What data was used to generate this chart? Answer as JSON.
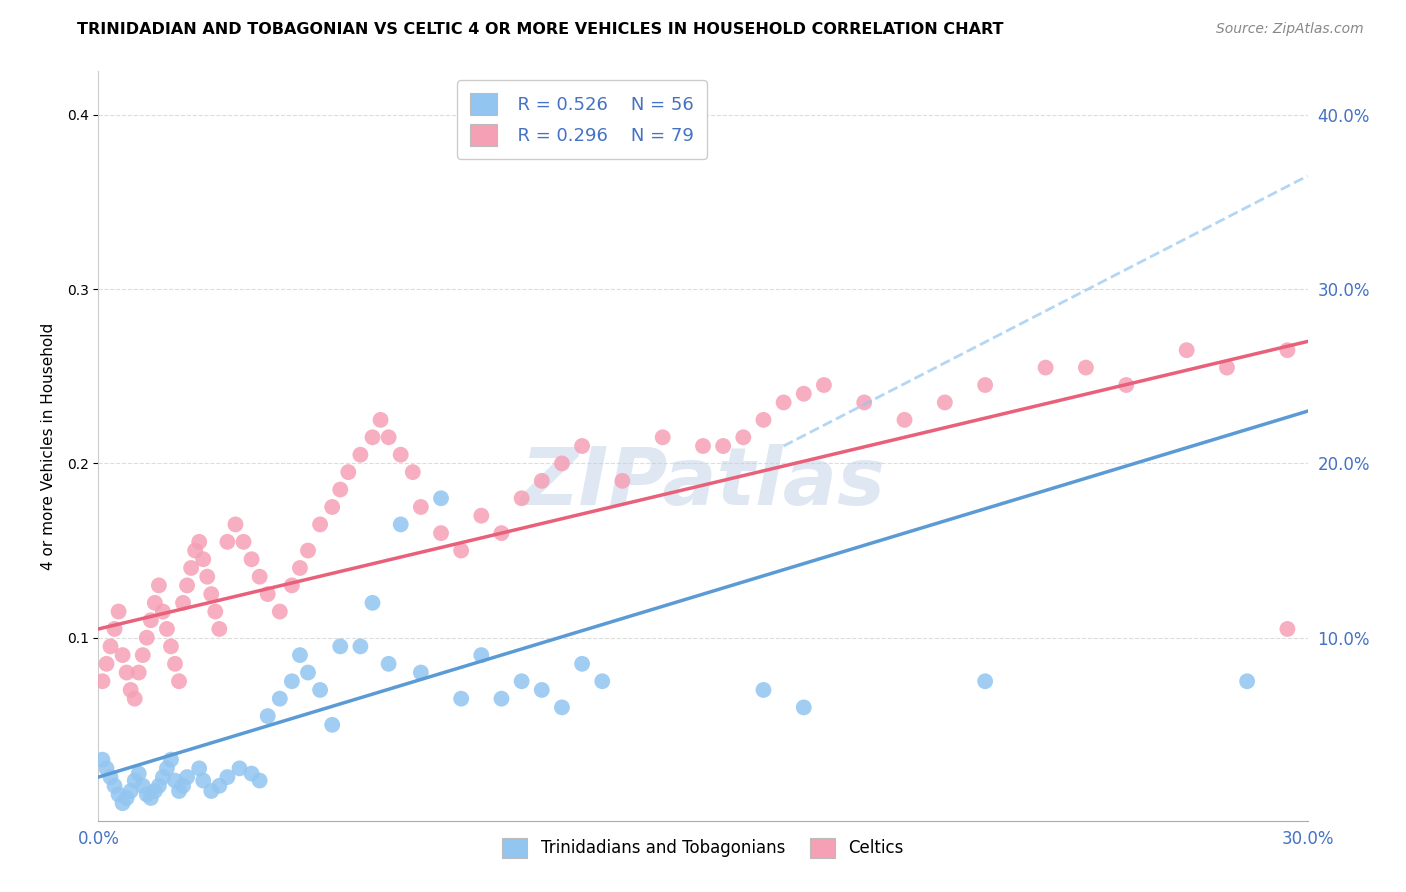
{
  "title": "TRINIDADIAN AND TOBAGONIAN VS CELTIC 4 OR MORE VEHICLES IN HOUSEHOLD CORRELATION CHART",
  "source": "Source: ZipAtlas.com",
  "ylabel": "4 or more Vehicles in Household",
  "xlim": [
    0.0,
    0.3
  ],
  "ylim": [
    -0.005,
    0.425
  ],
  "y_ticks": [
    0.1,
    0.2,
    0.3,
    0.4
  ],
  "x_ticks": [
    0.0,
    0.05,
    0.1,
    0.15,
    0.2,
    0.25,
    0.3
  ],
  "x_tick_labels": [
    "0.0%",
    "",
    "",
    "",
    "",
    "",
    "30.0%"
  ],
  "legend_blue_R": "R = 0.526",
  "legend_blue_N": "N = 56",
  "legend_pink_R": "R = 0.296",
  "legend_pink_N": "N = 79",
  "blue_color": "#92C5F0",
  "pink_color": "#F5A0B5",
  "blue_line_color": "#5B9BD5",
  "pink_line_color": "#E8607A",
  "blue_dash_color": "#92C5F0",
  "legend_text_color": "#4472C4",
  "watermark": "ZIPatlas",
  "blue_line": [
    0.0,
    0.02,
    0.3,
    0.23
  ],
  "pink_line": [
    0.0,
    0.105,
    0.3,
    0.27
  ],
  "blue_dash": [
    0.17,
    0.21,
    0.3,
    0.365
  ],
  "blue_points_x": [
    0.001,
    0.002,
    0.003,
    0.004,
    0.005,
    0.006,
    0.007,
    0.008,
    0.009,
    0.01,
    0.011,
    0.012,
    0.013,
    0.014,
    0.015,
    0.016,
    0.017,
    0.018,
    0.019,
    0.02,
    0.021,
    0.022,
    0.025,
    0.026,
    0.028,
    0.03,
    0.032,
    0.035,
    0.038,
    0.04,
    0.042,
    0.045,
    0.048,
    0.05,
    0.052,
    0.055,
    0.058,
    0.06,
    0.065,
    0.068,
    0.072,
    0.075,
    0.08,
    0.085,
    0.09,
    0.095,
    0.1,
    0.105,
    0.11,
    0.115,
    0.12,
    0.125,
    0.165,
    0.175,
    0.22,
    0.285
  ],
  "blue_points_y": [
    0.03,
    0.025,
    0.02,
    0.015,
    0.01,
    0.005,
    0.008,
    0.012,
    0.018,
    0.022,
    0.015,
    0.01,
    0.008,
    0.012,
    0.015,
    0.02,
    0.025,
    0.03,
    0.018,
    0.012,
    0.015,
    0.02,
    0.025,
    0.018,
    0.012,
    0.015,
    0.02,
    0.025,
    0.022,
    0.018,
    0.055,
    0.065,
    0.075,
    0.09,
    0.08,
    0.07,
    0.05,
    0.095,
    0.095,
    0.12,
    0.085,
    0.165,
    0.08,
    0.18,
    0.065,
    0.09,
    0.065,
    0.075,
    0.07,
    0.06,
    0.085,
    0.075,
    0.07,
    0.06,
    0.075,
    0.075
  ],
  "pink_points_x": [
    0.001,
    0.002,
    0.003,
    0.004,
    0.005,
    0.006,
    0.007,
    0.008,
    0.009,
    0.01,
    0.011,
    0.012,
    0.013,
    0.014,
    0.015,
    0.016,
    0.017,
    0.018,
    0.019,
    0.02,
    0.021,
    0.022,
    0.023,
    0.024,
    0.025,
    0.026,
    0.027,
    0.028,
    0.029,
    0.03,
    0.032,
    0.034,
    0.036,
    0.038,
    0.04,
    0.042,
    0.045,
    0.048,
    0.05,
    0.052,
    0.055,
    0.058,
    0.06,
    0.062,
    0.065,
    0.068,
    0.07,
    0.072,
    0.075,
    0.078,
    0.08,
    0.085,
    0.09,
    0.095,
    0.1,
    0.105,
    0.11,
    0.115,
    0.12,
    0.13,
    0.14,
    0.15,
    0.155,
    0.16,
    0.165,
    0.17,
    0.175,
    0.18,
    0.19,
    0.2,
    0.21,
    0.22,
    0.235,
    0.245,
    0.255,
    0.27,
    0.28,
    0.295,
    0.295
  ],
  "pink_points_y": [
    0.075,
    0.085,
    0.095,
    0.105,
    0.115,
    0.09,
    0.08,
    0.07,
    0.065,
    0.08,
    0.09,
    0.1,
    0.11,
    0.12,
    0.13,
    0.115,
    0.105,
    0.095,
    0.085,
    0.075,
    0.12,
    0.13,
    0.14,
    0.15,
    0.155,
    0.145,
    0.135,
    0.125,
    0.115,
    0.105,
    0.155,
    0.165,
    0.155,
    0.145,
    0.135,
    0.125,
    0.115,
    0.13,
    0.14,
    0.15,
    0.165,
    0.175,
    0.185,
    0.195,
    0.205,
    0.215,
    0.225,
    0.215,
    0.205,
    0.195,
    0.175,
    0.16,
    0.15,
    0.17,
    0.16,
    0.18,
    0.19,
    0.2,
    0.21,
    0.19,
    0.215,
    0.21,
    0.21,
    0.215,
    0.225,
    0.235,
    0.24,
    0.245,
    0.235,
    0.225,
    0.235,
    0.245,
    0.255,
    0.255,
    0.245,
    0.265,
    0.255,
    0.265,
    0.105
  ]
}
